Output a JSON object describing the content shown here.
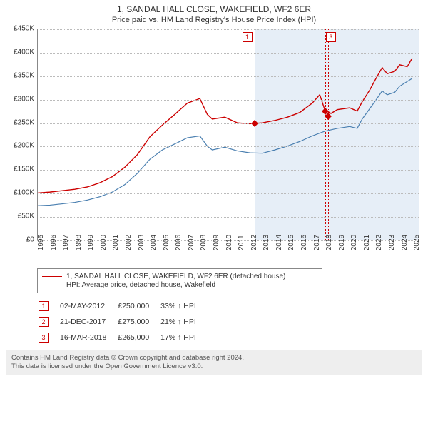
{
  "title": "1, SANDAL HALL CLOSE, WAKEFIELD, WF2 6ER",
  "subtitle": "Price paid vs. HM Land Registry's House Price Index (HPI)",
  "chart": {
    "type": "line",
    "background_color": "#ffffff",
    "shaded_color": "#e6eef7",
    "grid_color": "#bbbbbb",
    "x_range": [
      1995,
      2025.5
    ],
    "shaded_from": 2012.33,
    "y_axis": {
      "min": 0,
      "max": 450000,
      "step": 50000,
      "ticks": [
        "£0",
        "£50K",
        "£100K",
        "£150K",
        "£200K",
        "£250K",
        "£300K",
        "£350K",
        "£400K",
        "£450K"
      ]
    },
    "x_axis": {
      "ticks": [
        1995,
        1996,
        1997,
        1998,
        1999,
        2000,
        2001,
        2002,
        2003,
        2004,
        2005,
        2006,
        2007,
        2008,
        2009,
        2010,
        2011,
        2012,
        2013,
        2014,
        2015,
        2016,
        2017,
        2018,
        2019,
        2020,
        2021,
        2022,
        2023,
        2024,
        2025
      ]
    },
    "series": [
      {
        "name": "price_paid",
        "color": "#cc0000",
        "width": 1.4,
        "points": [
          [
            1995,
            100000
          ],
          [
            1996,
            102000
          ],
          [
            1997,
            105000
          ],
          [
            1998,
            108000
          ],
          [
            1999,
            113000
          ],
          [
            2000,
            122000
          ],
          [
            2001,
            135000
          ],
          [
            2002,
            155000
          ],
          [
            2003,
            182000
          ],
          [
            2004,
            220000
          ],
          [
            2005,
            245000
          ],
          [
            2006,
            268000
          ],
          [
            2007,
            292000
          ],
          [
            2008,
            302000
          ],
          [
            2008.6,
            268000
          ],
          [
            2009,
            258000
          ],
          [
            2010,
            262000
          ],
          [
            2011,
            250000
          ],
          [
            2012,
            248000
          ],
          [
            2013,
            250000
          ],
          [
            2014,
            255000
          ],
          [
            2015,
            262000
          ],
          [
            2016,
            272000
          ],
          [
            2017,
            292000
          ],
          [
            2017.6,
            310000
          ],
          [
            2018,
            278000
          ],
          [
            2018.5,
            270000
          ],
          [
            2019,
            278000
          ],
          [
            2020,
            282000
          ],
          [
            2020.6,
            275000
          ],
          [
            2021,
            295000
          ],
          [
            2021.6,
            320000
          ],
          [
            2022,
            340000
          ],
          [
            2022.6,
            368000
          ],
          [
            2023,
            355000
          ],
          [
            2023.6,
            360000
          ],
          [
            2024,
            374000
          ],
          [
            2024.6,
            370000
          ],
          [
            2025,
            388000
          ]
        ]
      },
      {
        "name": "hpi",
        "color": "#4a7fb0",
        "width": 1.2,
        "points": [
          [
            1995,
            73000
          ],
          [
            1996,
            74000
          ],
          [
            1997,
            77000
          ],
          [
            1998,
            80000
          ],
          [
            1999,
            85000
          ],
          [
            2000,
            92000
          ],
          [
            2001,
            102000
          ],
          [
            2002,
            118000
          ],
          [
            2003,
            142000
          ],
          [
            2004,
            172000
          ],
          [
            2005,
            192000
          ],
          [
            2006,
            205000
          ],
          [
            2007,
            218000
          ],
          [
            2008,
            222000
          ],
          [
            2008.6,
            200000
          ],
          [
            2009,
            192000
          ],
          [
            2010,
            198000
          ],
          [
            2011,
            190000
          ],
          [
            2012,
            186000
          ],
          [
            2013,
            185000
          ],
          [
            2014,
            192000
          ],
          [
            2015,
            200000
          ],
          [
            2016,
            210000
          ],
          [
            2017,
            222000
          ],
          [
            2018,
            232000
          ],
          [
            2019,
            238000
          ],
          [
            2020,
            242000
          ],
          [
            2020.6,
            238000
          ],
          [
            2021,
            258000
          ],
          [
            2022,
            295000
          ],
          [
            2022.6,
            318000
          ],
          [
            2023,
            310000
          ],
          [
            2023.6,
            315000
          ],
          [
            2024,
            328000
          ],
          [
            2025,
            345000
          ]
        ]
      }
    ],
    "sales": [
      {
        "flag": "1",
        "x": 2012.33,
        "price": 250000
      },
      {
        "flag": "2",
        "x": 2017.97,
        "price": 275000
      },
      {
        "flag": "3",
        "x": 2018.21,
        "price": 265000
      }
    ],
    "flag_positions": [
      {
        "flag": "1",
        "x": 2012.33,
        "label_offset": -10
      },
      {
        "flag": "3",
        "x": 2018.21,
        "label_offset": 4
      }
    ]
  },
  "legend": {
    "items": [
      {
        "color": "#cc0000",
        "label": "1, SANDAL HALL CLOSE, WAKEFIELD, WF2 6ER (detached house)"
      },
      {
        "color": "#4a7fb0",
        "label": "HPI: Average price, detached house, Wakefield"
      }
    ]
  },
  "sales_table": {
    "rows": [
      {
        "flag": "1",
        "date": "02-MAY-2012",
        "price": "£250,000",
        "delta": "33% ↑ HPI"
      },
      {
        "flag": "2",
        "date": "21-DEC-2017",
        "price": "£275,000",
        "delta": "21% ↑ HPI"
      },
      {
        "flag": "3",
        "date": "16-MAR-2018",
        "price": "£265,000",
        "delta": "17% ↑ HPI"
      }
    ]
  },
  "footer": {
    "line1": "Contains HM Land Registry data © Crown copyright and database right 2024.",
    "line2": "This data is licensed under the Open Government Licence v3.0."
  }
}
